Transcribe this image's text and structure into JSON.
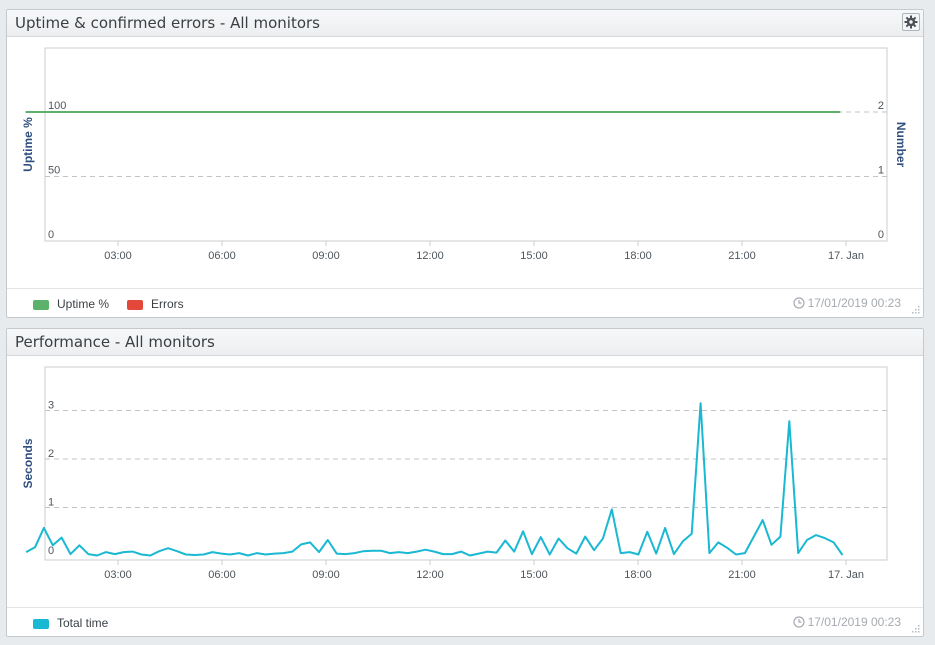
{
  "uptime_panel": {
    "title": "Uptime & confirmed errors - All monitors",
    "timestamp": "17/01/2019 00:23",
    "legend": [
      {
        "label": "Uptime %",
        "color": "#5cb16b"
      },
      {
        "label": "Errors",
        "color": "#e3483b"
      }
    ],
    "icons": {
      "settings": "gear-icon",
      "timestamp": "clock-icon"
    }
  },
  "performance_panel": {
    "title": "Performance - All monitors",
    "timestamp": "17/01/2019 00:23",
    "legend": [
      {
        "label": "Total time",
        "color": "#1ab8d2"
      }
    ],
    "icons": {
      "timestamp": "clock-icon"
    }
  },
  "chart_data": [
    {
      "type": "line",
      "ylabel": "Uptime %",
      "y2label": "Number",
      "ylim": [
        0,
        100
      ],
      "y2lim": [
        0,
        2
      ],
      "yticks": [
        "0",
        "50",
        "100"
      ],
      "y2ticks": [
        "0",
        "1",
        "2"
      ],
      "xticks": [
        "03:00",
        "06:00",
        "09:00",
        "12:00",
        "15:00",
        "18:00",
        "21:00",
        "17. Jan"
      ],
      "grid": "horizontal dashed",
      "series": [
        {
          "name": "Uptime %",
          "color": "#5cb16b",
          "x": [
            "00:20",
            "23:50"
          ],
          "values": [
            100,
            100
          ]
        },
        {
          "name": "Errors",
          "color": "#e3483b",
          "values": []
        }
      ]
    },
    {
      "type": "line",
      "ylabel": "Seconds",
      "ylim": [
        0,
        3.2
      ],
      "yticks": [
        "0",
        "1",
        "2",
        "3"
      ],
      "xticks": [
        "03:00",
        "06:00",
        "09:00",
        "12:00",
        "15:00",
        "18:00",
        "21:00",
        "17. Jan"
      ],
      "grid": "horizontal dashed",
      "series": [
        {
          "name": "Total time",
          "color": "#1ab8d2",
          "values": [
            0.08,
            0.18,
            0.58,
            0.22,
            0.38,
            0.04,
            0.22,
            0.04,
            0.01,
            0.08,
            0.04,
            0.08,
            0.09,
            0.03,
            0.01,
            0.1,
            0.16,
            0.1,
            0.03,
            0.02,
            0.03,
            0.08,
            0.05,
            0.03,
            0.06,
            0.01,
            0.06,
            0.03,
            0.05,
            0.06,
            0.09,
            0.24,
            0.28,
            0.08,
            0.33,
            0.05,
            0.04,
            0.06,
            0.1,
            0.11,
            0.11,
            0.06,
            0.08,
            0.06,
            0.09,
            0.13,
            0.09,
            0.04,
            0.04,
            0.09,
            0.01,
            0.05,
            0.09,
            0.07,
            0.32,
            0.09,
            0.51,
            0.04,
            0.39,
            0.03,
            0.36,
            0.16,
            0.05,
            0.4,
            0.12,
            0.36,
            0.96,
            0.06,
            0.08,
            0.03,
            0.5,
            0.05,
            0.58,
            0.04,
            0.3,
            0.46,
            3.15,
            0.06,
            0.28,
            0.17,
            0.03,
            0.06,
            0.4,
            0.74,
            0.23,
            0.4,
            2.78,
            0.06,
            0.33,
            0.43,
            0.37,
            0.28,
            0.02
          ]
        }
      ]
    }
  ]
}
